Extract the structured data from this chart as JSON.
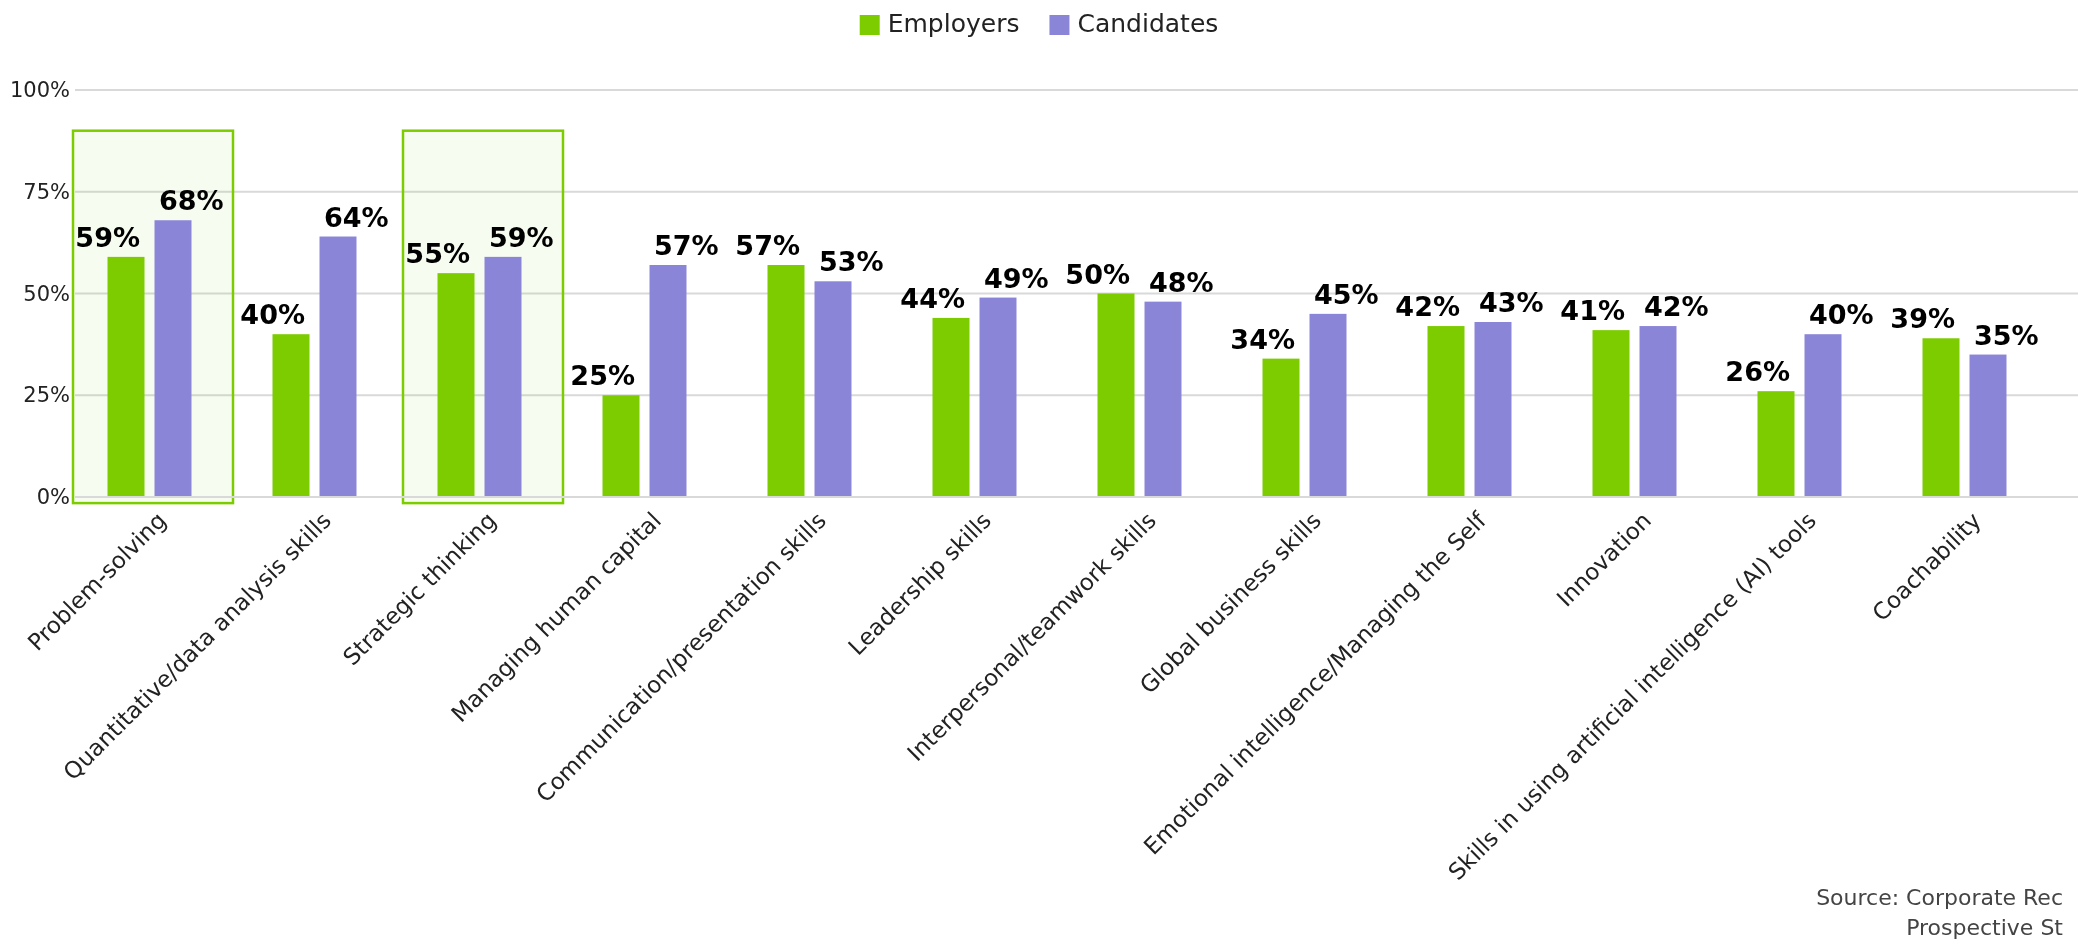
{
  "chart_data": {
    "type": "bar",
    "categories": [
      "Problem-solving",
      "Quantitative/data analysis skills",
      "Strategic thinking",
      "Managing human capital",
      "Communication/presentation skills",
      "Leadership skills",
      "Interpersonal/teamwork skills",
      "Global business skills",
      "Emotional intelligence/Managing the Self",
      "Innovation",
      "Skills in using artificial intelligence (AI) tools",
      "Coachability"
    ],
    "series": [
      {
        "name": "Employers",
        "color": "#7ccc00",
        "values": [
          59,
          40,
          55,
          25,
          57,
          44,
          50,
          34,
          42,
          41,
          26,
          39
        ],
        "value_labels": [
          "59%",
          "40%",
          "55%",
          "25%",
          "57%",
          "44%",
          "50%",
          "34%",
          "42%",
          "41%",
          "26%",
          "39%"
        ]
      },
      {
        "name": "Candidates",
        "color": "#8b85d8",
        "values": [
          68,
          64,
          59,
          57,
          53,
          49,
          48,
          45,
          43,
          42,
          40,
          35
        ],
        "value_labels": [
          "68%",
          "64%",
          "59%",
          "57%",
          "53%",
          "49%",
          "48%",
          "45%",
          "43%",
          "42%",
          "40%",
          "35%"
        ]
      }
    ],
    "ylim": [
      0,
      100
    ],
    "yticks": [
      {
        "value": 0,
        "label": "0%"
      },
      {
        "value": 25,
        "label": "25%"
      },
      {
        "value": 50,
        "label": "50%"
      },
      {
        "value": 75,
        "label": "75%"
      },
      {
        "value": 100,
        "label": "100%"
      }
    ],
    "grid": "y",
    "legend": "top",
    "bands": [
      {
        "axis": "x",
        "from": "Problem-solving",
        "to": "Problem-solving",
        "color": "#7ccc00"
      },
      {
        "axis": "x",
        "from": "Strategic thinking",
        "to": "Strategic thinking",
        "color": "#7ccc00"
      }
    ],
    "annotations": [
      "Source: Corporate Rec",
      "Prospective St"
    ]
  }
}
